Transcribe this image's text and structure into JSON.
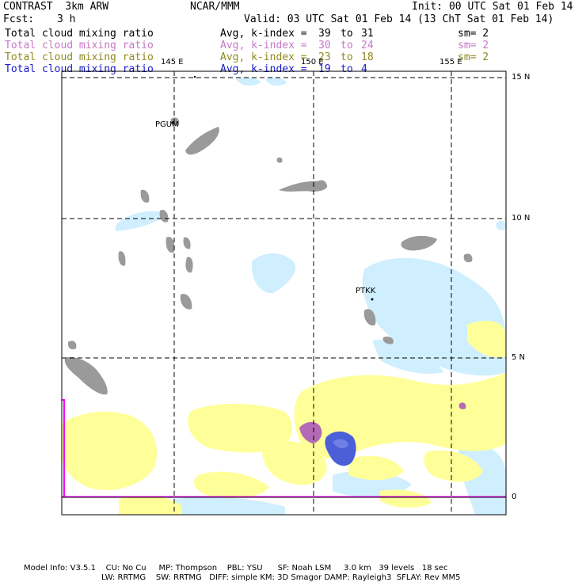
{
  "header": {
    "title_left": "CONTRAST  3km ARW",
    "title_center": "NCAR/MMM",
    "init": "Init: 00 UTC Sat 01 Feb 14",
    "fcst_label": "Fcst:",
    "fcst_value": "3 h",
    "valid": "Valid: 03 UTC Sat 01 Feb 14 (13 ChT Sat 01 Feb 14)"
  },
  "legend": [
    {
      "field": "Total cloud mixing ratio",
      "avg": "Avg, k-index =",
      "k_from": "39",
      "to": "to",
      "k_to": "31",
      "sm": "sm= 2",
      "color": "#000000"
    },
    {
      "field": "Total cloud mixing ratio",
      "avg": "Avg, k-index =",
      "k_from": "30",
      "to": "to",
      "k_to": "24",
      "sm": "sm= 2",
      "color": "#c678c6"
    },
    {
      "field": "Total cloud mixing ratio",
      "avg": "Avg, k-index =",
      "k_from": "23",
      "to": "to",
      "k_to": "18",
      "sm": "sm= 2",
      "color": "#8f8a1e"
    },
    {
      "field": "Total cloud mixing ratio",
      "avg": "Avg, k-index =",
      "k_from": "19",
      "to": "to",
      "k_to": "4",
      "sm": "",
      "color": "#1a1acc"
    }
  ],
  "map": {
    "lon_labels": [
      "145 E",
      "150 E",
      "155 E"
    ],
    "lat_labels": [
      "15 N",
      "10 N",
      "5 N",
      "0"
    ],
    "stations": [
      "PGUM",
      "PTKK"
    ],
    "colors": {
      "high_cloud": "#9a9a9a",
      "mid_cloud": "#ffff99",
      "low_cloud": "#cfefff",
      "pink_cloud": "#b46ab4",
      "blue_cloud": "#4a5fd8",
      "grid_line": "#000000",
      "side_bar": "#ff00ff"
    }
  },
  "footer": {
    "line1": "Model Info: V3.5.1    CU: No Cu     MP: Thompson    PBL: YSU      SF: Noah LSM     3.0 km   39 levels   18 sec",
    "line2": "LW: RRTMG    SW: RRTMG   DIFF: simple KM: 3D Smagor DAMP: Rayleigh3  SFLAY: Rev MM5"
  }
}
